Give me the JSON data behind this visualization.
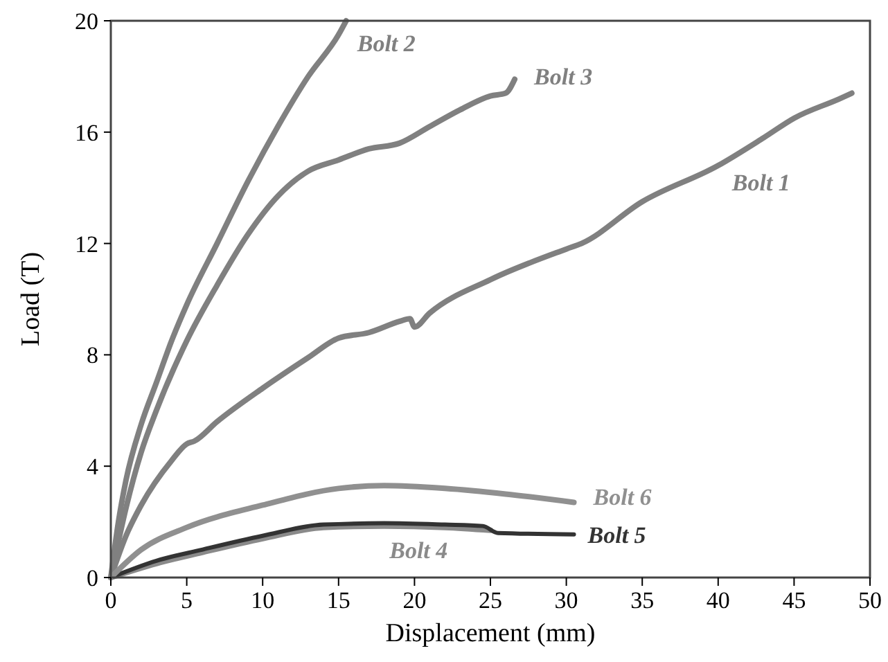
{
  "chart_data": {
    "type": "line",
    "xlabel": "Displacement (mm)",
    "ylabel": "Load (T)",
    "xlim": [
      0,
      50
    ],
    "xticks": [
      0,
      5,
      10,
      15,
      20,
      25,
      30,
      35,
      40,
      45,
      50
    ],
    "ylim": [
      0,
      20
    ],
    "yticks": [
      0,
      4,
      8,
      12,
      16,
      20
    ],
    "grid": false,
    "marker": "none",
    "line_style": "solid",
    "series": [
      {
        "name": "Bolt 1",
        "color": "#808080",
        "x": [
          0,
          1,
          2,
          4,
          5,
          5.5,
          7,
          10,
          13,
          15,
          17,
          19,
          19.7,
          20,
          21,
          25,
          30,
          31,
          35,
          40,
          43,
          45,
          48,
          48.8
        ],
        "values": [
          0,
          1.5,
          2.6,
          4.2,
          4.8,
          4.9,
          5.6,
          6.8,
          7.9,
          8.6,
          8.8,
          9.2,
          9.3,
          9.0,
          9.5,
          10.7,
          11.8,
          12.0,
          13.5,
          14.8,
          15.8,
          16.5,
          17.2,
          17.4
        ]
      },
      {
        "name": "Bolt 2",
        "color": "#808080",
        "x": [
          0,
          0.5,
          1,
          2,
          3,
          4,
          5,
          7,
          9,
          11,
          13,
          15,
          15.5
        ],
        "values": [
          0,
          2,
          3.5,
          5.5,
          7,
          8.5,
          9.8,
          12,
          14.2,
          16.2,
          18,
          19.5,
          20
        ]
      },
      {
        "name": "Bolt 3",
        "color": "#808080",
        "x": [
          0,
          1,
          2,
          3,
          5,
          7,
          9,
          11,
          13,
          15,
          17,
          19,
          21,
          23,
          25,
          26,
          26.6
        ],
        "values": [
          0,
          2.5,
          4.5,
          6,
          8.5,
          10.5,
          12.3,
          13.7,
          14.6,
          15,
          15.4,
          15.6,
          16.2,
          16.8,
          17.3,
          17.4,
          17.9
        ]
      },
      {
        "name": "Bolt 4",
        "color": "#8a8a8a",
        "x": [
          0,
          3,
          6,
          10,
          14,
          18,
          22,
          25
        ],
        "values": [
          0,
          0.5,
          0.9,
          1.4,
          1.8,
          1.85,
          1.8,
          1.7
        ]
      },
      {
        "name": "Bolt 5",
        "color": "#333333",
        "x": [
          0,
          3,
          6,
          10,
          14,
          18,
          22,
          24.5,
          25.5,
          30.5
        ],
        "values": [
          0,
          0.6,
          1.0,
          1.5,
          1.9,
          1.95,
          1.9,
          1.85,
          1.6,
          1.55
        ]
      },
      {
        "name": "Bolt 6",
        "color": "#909090",
        "x": [
          0,
          2,
          5,
          10,
          15,
          18,
          22,
          26,
          30.5
        ],
        "values": [
          0,
          1.0,
          1.8,
          2.6,
          3.2,
          3.3,
          3.2,
          3.0,
          2.7
        ]
      }
    ]
  }
}
